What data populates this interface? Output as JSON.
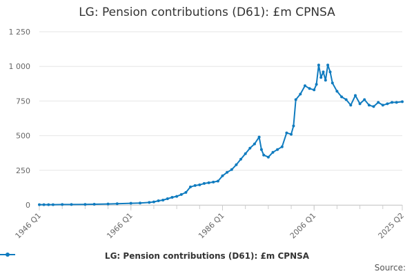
{
  "chart_data": {
    "type": "line",
    "title": "LG: Pension contributions (D61): £m CPNSA",
    "xlabel": "",
    "ylabel": "",
    "ylim": [
      0,
      1250
    ],
    "y_ticks": [
      {
        "value": 0,
        "label": "0"
      },
      {
        "value": 250,
        "label": "250"
      },
      {
        "value": 500,
        "label": "500"
      },
      {
        "value": 750,
        "label": "750"
      },
      {
        "value": 1000,
        "label": "1 000"
      },
      {
        "value": 1250,
        "label": "1 250"
      }
    ],
    "x_range": [
      "1946 Q1",
      "2025 Q2"
    ],
    "x_ticks": [
      "1946 Q1",
      "1966 Q1",
      "1986 Q1",
      "2006 Q1",
      "2025 Q2"
    ],
    "grid": "horizontal",
    "legend_position": "bottom",
    "series": [
      {
        "name": "LG: Pension contributions (D61): £m CPNSA",
        "color": "#0f7bbf",
        "points": [
          [
            "1946 Q1",
            2
          ],
          [
            "1947 Q1",
            2
          ],
          [
            "1948 Q1",
            2
          ],
          [
            "1949 Q1",
            2
          ],
          [
            "1951 Q1",
            3
          ],
          [
            "1953 Q1",
            3
          ],
          [
            "1956 Q1",
            4
          ],
          [
            "1958 Q1",
            5
          ],
          [
            "1961 Q1",
            7
          ],
          [
            "1963 Q1",
            9
          ],
          [
            "1966 Q1",
            12
          ],
          [
            "1968 Q1",
            14
          ],
          [
            "1970 Q1",
            18
          ],
          [
            "1971 Q1",
            22
          ],
          [
            "1972 Q1",
            30
          ],
          [
            "1973 Q1",
            35
          ],
          [
            "1974 Q1",
            45
          ],
          [
            "1975 Q1",
            55
          ],
          [
            "1976 Q1",
            62
          ],
          [
            "1977 Q1",
            75
          ],
          [
            "1978 Q1",
            90
          ],
          [
            "1979 Q1",
            130
          ],
          [
            "1980 Q1",
            140
          ],
          [
            "1981 Q1",
            145
          ],
          [
            "1982 Q1",
            155
          ],
          [
            "1983 Q1",
            160
          ],
          [
            "1984 Q1",
            165
          ],
          [
            "1985 Q1",
            172
          ],
          [
            "1986 Q1",
            210
          ],
          [
            "1987 Q1",
            235
          ],
          [
            "1988 Q1",
            255
          ],
          [
            "1989 Q1",
            290
          ],
          [
            "1990 Q1",
            330
          ],
          [
            "1991 Q1",
            370
          ],
          [
            "1992 Q1",
            410
          ],
          [
            "1993 Q1",
            440
          ],
          [
            "1994 Q1",
            490
          ],
          [
            "1994 Q3",
            400
          ],
          [
            "1995 Q1",
            360
          ],
          [
            "1996 Q1",
            345
          ],
          [
            "1997 Q1",
            380
          ],
          [
            "1998 Q1",
            400
          ],
          [
            "1999 Q1",
            420
          ],
          [
            "2000 Q1",
            520
          ],
          [
            "2001 Q1",
            510
          ],
          [
            "2001 Q3",
            570
          ],
          [
            "2002 Q1",
            760
          ],
          [
            "2003 Q1",
            800
          ],
          [
            "2004 Q1",
            860
          ],
          [
            "2005 Q1",
            840
          ],
          [
            "2006 Q1",
            830
          ],
          [
            "2006 Q3",
            870
          ],
          [
            "2007 Q1",
            1010
          ],
          [
            "2007 Q3",
            920
          ],
          [
            "2008 Q1",
            960
          ],
          [
            "2008 Q3",
            900
          ],
          [
            "2009 Q1",
            1010
          ],
          [
            "2009 Q3",
            960
          ],
          [
            "2010 Q1",
            880
          ],
          [
            "2011 Q1",
            820
          ],
          [
            "2012 Q1",
            780
          ],
          [
            "2013 Q1",
            760
          ],
          [
            "2014 Q1",
            720
          ],
          [
            "2015 Q1",
            790
          ],
          [
            "2016 Q1",
            730
          ],
          [
            "2017 Q1",
            760
          ],
          [
            "2018 Q1",
            720
          ],
          [
            "2019 Q1",
            710
          ],
          [
            "2020 Q1",
            740
          ],
          [
            "2021 Q1",
            720
          ],
          [
            "2022 Q1",
            730
          ],
          [
            "2023 Q1",
            740
          ],
          [
            "2024 Q1",
            740
          ],
          [
            "2025 Q2",
            745
          ]
        ]
      }
    ]
  },
  "source_label": "Source:"
}
